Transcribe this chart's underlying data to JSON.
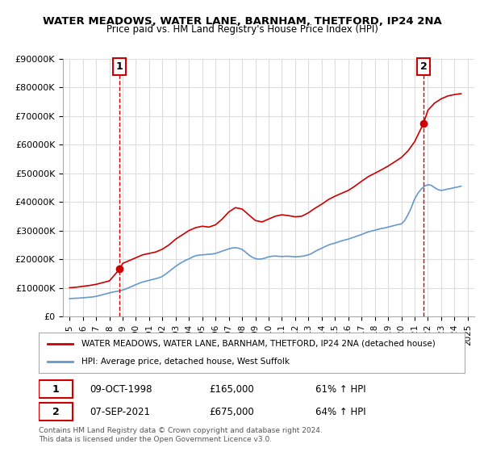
{
  "title": "WATER MEADOWS, WATER LANE, BARNHAM, THETFORD, IP24 2NA",
  "subtitle": "Price paid vs. HM Land Registry's House Price Index (HPI)",
  "legend_label_red": "WATER MEADOWS, WATER LANE, BARNHAM, THETFORD, IP24 2NA (detached house)",
  "legend_label_blue": "HPI: Average price, detached house, West Suffolk",
  "footnote": "Contains HM Land Registry data © Crown copyright and database right 2024.\nThis data is licensed under the Open Government Licence v3.0.",
  "point1_label": "1",
  "point1_date": "09-OCT-1998",
  "point1_price": "£165,000",
  "point1_hpi": "61% ↑ HPI",
  "point1_x": 1998.77,
  "point1_y": 165000,
  "point2_label": "2",
  "point2_date": "07-SEP-2021",
  "point2_price": "£675,000",
  "point2_hpi": "64% ↑ HPI",
  "point2_x": 2021.68,
  "point2_y": 675000,
  "ylim": [
    0,
    900000
  ],
  "xlim": [
    1994.5,
    2025.5
  ],
  "yticks": [
    0,
    100000,
    200000,
    300000,
    400000,
    500000,
    600000,
    700000,
    800000,
    900000
  ],
  "xticks": [
    1995,
    1996,
    1997,
    1998,
    1999,
    2000,
    2001,
    2002,
    2003,
    2004,
    2005,
    2006,
    2007,
    2008,
    2009,
    2010,
    2011,
    2012,
    2013,
    2014,
    2015,
    2016,
    2017,
    2018,
    2019,
    2020,
    2021,
    2022,
    2023,
    2024,
    2025
  ],
  "red_color": "#cc0000",
  "blue_color": "#6699cc",
  "dashed_color": "#cc0000",
  "background_color": "#ffffff",
  "grid_color": "#dddddd",
  "hpi_x": [
    1995.0,
    1995.25,
    1995.5,
    1995.75,
    1996.0,
    1996.25,
    1996.5,
    1996.75,
    1997.0,
    1997.25,
    1997.5,
    1997.75,
    1998.0,
    1998.25,
    1998.5,
    1998.75,
    1999.0,
    1999.25,
    1999.5,
    1999.75,
    2000.0,
    2000.25,
    2000.5,
    2000.75,
    2001.0,
    2001.25,
    2001.5,
    2001.75,
    2002.0,
    2002.25,
    2002.5,
    2002.75,
    2003.0,
    2003.25,
    2003.5,
    2003.75,
    2004.0,
    2004.25,
    2004.5,
    2004.75,
    2005.0,
    2005.25,
    2005.5,
    2005.75,
    2006.0,
    2006.25,
    2006.5,
    2006.75,
    2007.0,
    2007.25,
    2007.5,
    2007.75,
    2008.0,
    2008.25,
    2008.5,
    2008.75,
    2009.0,
    2009.25,
    2009.5,
    2009.75,
    2010.0,
    2010.25,
    2010.5,
    2010.75,
    2011.0,
    2011.25,
    2011.5,
    2011.75,
    2012.0,
    2012.25,
    2012.5,
    2012.75,
    2013.0,
    2013.25,
    2013.5,
    2013.75,
    2014.0,
    2014.25,
    2014.5,
    2014.75,
    2015.0,
    2015.25,
    2015.5,
    2015.75,
    2016.0,
    2016.25,
    2016.5,
    2016.75,
    2017.0,
    2017.25,
    2017.5,
    2017.75,
    2018.0,
    2018.25,
    2018.5,
    2018.75,
    2019.0,
    2019.25,
    2019.5,
    2019.75,
    2020.0,
    2020.25,
    2020.5,
    2020.75,
    2021.0,
    2021.25,
    2021.5,
    2021.75,
    2022.0,
    2022.25,
    2022.5,
    2022.75,
    2023.0,
    2023.25,
    2023.5,
    2023.75,
    2024.0,
    2024.25,
    2024.5
  ],
  "hpi_y": [
    62000,
    63000,
    63500,
    64000,
    65000,
    66000,
    67000,
    68000,
    70000,
    73000,
    76000,
    79000,
    82000,
    85000,
    87000,
    89000,
    92000,
    96000,
    101000,
    106000,
    111000,
    116000,
    120000,
    123000,
    126000,
    129000,
    132000,
    135000,
    140000,
    148000,
    157000,
    166000,
    175000,
    183000,
    190000,
    196000,
    201000,
    207000,
    212000,
    214000,
    215000,
    216000,
    217000,
    218000,
    220000,
    224000,
    228000,
    232000,
    236000,
    239000,
    240000,
    238000,
    234000,
    225000,
    215000,
    207000,
    202000,
    200000,
    201000,
    204000,
    208000,
    210000,
    211000,
    210000,
    209000,
    210000,
    210000,
    209000,
    208000,
    209000,
    210000,
    212000,
    215000,
    220000,
    227000,
    233000,
    238000,
    244000,
    249000,
    253000,
    256000,
    260000,
    264000,
    267000,
    270000,
    274000,
    278000,
    282000,
    286000,
    291000,
    295000,
    298000,
    301000,
    304000,
    307000,
    309000,
    312000,
    315000,
    318000,
    321000,
    323000,
    335000,
    355000,
    380000,
    410000,
    430000,
    445000,
    455000,
    460000,
    458000,
    450000,
    443000,
    440000,
    442000,
    445000,
    447000,
    450000,
    452000,
    455000
  ],
  "red_x": [
    1995.0,
    1995.5,
    1996.0,
    1996.5,
    1997.0,
    1997.5,
    1998.0,
    1998.77,
    1999.0,
    1999.5,
    2000.0,
    2000.5,
    2001.0,
    2001.5,
    2002.0,
    2002.5,
    2003.0,
    2003.5,
    2004.0,
    2004.5,
    2005.0,
    2005.5,
    2006.0,
    2006.5,
    2007.0,
    2007.5,
    2008.0,
    2008.5,
    2009.0,
    2009.5,
    2010.0,
    2010.5,
    2011.0,
    2011.5,
    2012.0,
    2012.5,
    2013.0,
    2013.5,
    2014.0,
    2014.5,
    2015.0,
    2015.5,
    2016.0,
    2016.5,
    2017.0,
    2017.5,
    2018.0,
    2018.5,
    2019.0,
    2019.5,
    2020.0,
    2020.5,
    2021.0,
    2021.68,
    2022.0,
    2022.5,
    2023.0,
    2023.5,
    2024.0,
    2024.5
  ],
  "red_y": [
    100000,
    102000,
    105000,
    108000,
    112000,
    118000,
    124000,
    165000,
    185000,
    195000,
    205000,
    215000,
    220000,
    225000,
    235000,
    250000,
    270000,
    285000,
    300000,
    310000,
    315000,
    312000,
    320000,
    340000,
    365000,
    380000,
    375000,
    355000,
    335000,
    330000,
    340000,
    350000,
    355000,
    352000,
    348000,
    350000,
    362000,
    378000,
    392000,
    408000,
    420000,
    430000,
    440000,
    455000,
    472000,
    488000,
    500000,
    512000,
    525000,
    540000,
    555000,
    578000,
    610000,
    675000,
    720000,
    745000,
    760000,
    770000,
    775000,
    778000
  ]
}
